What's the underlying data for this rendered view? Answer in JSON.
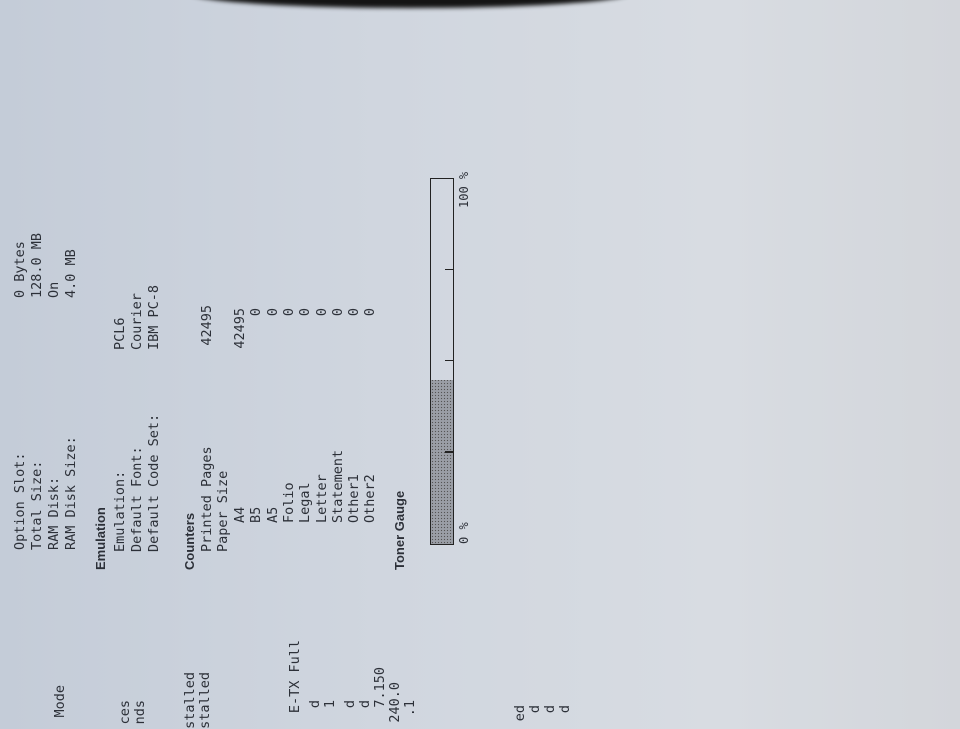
{
  "memory": {
    "rows": [
      {
        "label": "Option Slot:",
        "value": "0 Bytes"
      },
      {
        "label": "Total Size:",
        "value": "128.0 MB"
      },
      {
        "label": "RAM Disk:",
        "value": "On"
      },
      {
        "label": "RAM Disk Size:",
        "value": "4.0 MB"
      }
    ]
  },
  "emulation": {
    "heading": "Emulation",
    "rows": [
      {
        "label": "Emulation:",
        "value": "PCL6"
      },
      {
        "label": "Default Font:",
        "value": "Courier"
      },
      {
        "label": "Default Code Set:",
        "value": "IBM PC-8"
      }
    ]
  },
  "counters": {
    "heading": "Counters",
    "printed_pages": {
      "label": "Printed Pages",
      "value": "42495"
    },
    "paper_size_label": "Paper Size",
    "paper_sizes": [
      {
        "label": "A4",
        "value": "42495"
      },
      {
        "label": "B5",
        "value": "0"
      },
      {
        "label": "A5",
        "value": "0"
      },
      {
        "label": "Folio",
        "value": "0"
      },
      {
        "label": "Legal",
        "value": "0"
      },
      {
        "label": "Letter",
        "value": "0"
      },
      {
        "label": "Statement",
        "value": "0"
      },
      {
        "label": "Other1",
        "value": "0"
      },
      {
        "label": "Other2",
        "value": "0"
      }
    ]
  },
  "toner": {
    "heading": "Toner Gauge",
    "level_percent": 45,
    "min_label": "0 %",
    "max_label": "100 %"
  },
  "left_column_fragments": [
    "Mode",
    "ces",
    "nds",
    "stalled",
    "stalled",
    "E-TX Full",
    "d",
    "1",
    "d",
    "d",
    "7.150",
    "240.0",
    ".1",
    "ed",
    "d",
    "d",
    "d"
  ]
}
